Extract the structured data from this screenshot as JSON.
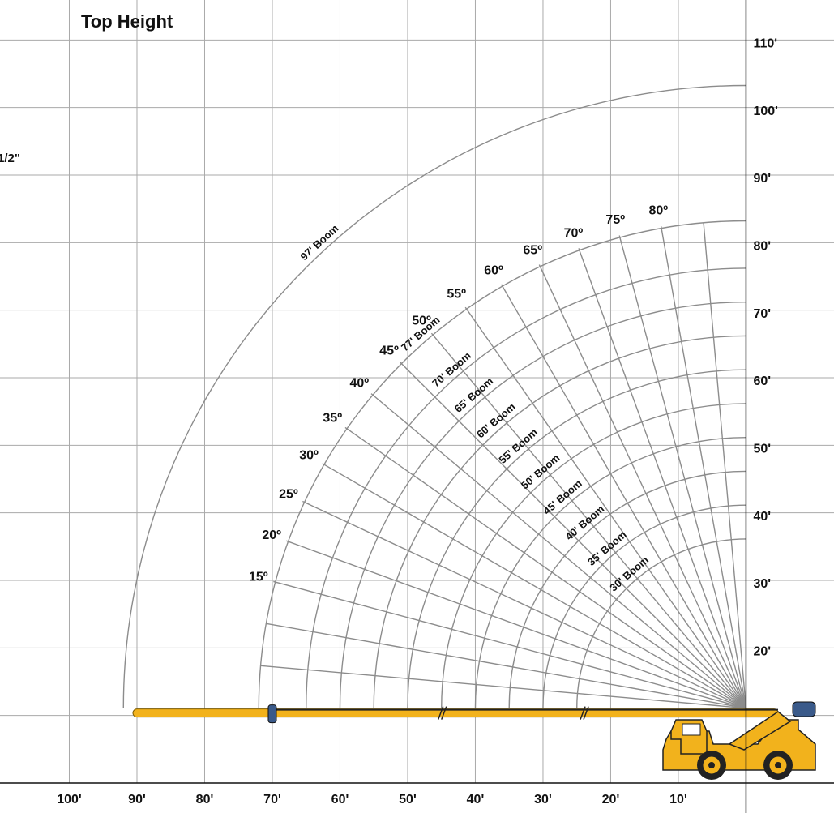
{
  "chart_data": {
    "type": "boom-range",
    "title": "Top Height",
    "side_note": "1/2\"",
    "xlim": [
      110,
      -13
    ],
    "ylim": [
      0,
      120
    ],
    "xticks": [
      {
        "value": 100,
        "label": "100'"
      },
      {
        "value": 90,
        "label": "90'"
      },
      {
        "value": 80,
        "label": "80'"
      },
      {
        "value": 70,
        "label": "70'"
      },
      {
        "value": 60,
        "label": "60'"
      },
      {
        "value": 50,
        "label": "50'"
      },
      {
        "value": 40,
        "label": "40'"
      },
      {
        "value": 30,
        "label": "30'"
      },
      {
        "value": 20,
        "label": "20'"
      },
      {
        "value": 10,
        "label": "10'"
      }
    ],
    "yticks": [
      {
        "value": 110,
        "label": "110'"
      },
      {
        "value": 100,
        "label": "100'"
      },
      {
        "value": 90,
        "label": "90'"
      },
      {
        "value": 80,
        "label": "80'"
      },
      {
        "value": 70,
        "label": "70'"
      },
      {
        "value": 60,
        "label": "60'"
      },
      {
        "value": 50,
        "label": "50'"
      },
      {
        "value": 40,
        "label": "40'"
      },
      {
        "value": 30,
        "label": "30'"
      },
      {
        "value": 20,
        "label": "20'"
      }
    ],
    "grid": true,
    "booms": [
      {
        "value": 97,
        "label": "97' Boom"
      },
      {
        "value": 77,
        "label": "77' Boom"
      },
      {
        "value": 70,
        "label": "70' Boom"
      },
      {
        "value": 65,
        "label": "65' Boom"
      },
      {
        "value": 60,
        "label": "60' Boom"
      },
      {
        "value": 55,
        "label": "55' Boom"
      },
      {
        "value": 50,
        "label": "50' Boom"
      },
      {
        "value": 45,
        "label": "45' Boom"
      },
      {
        "value": 40,
        "label": "40' Boom"
      },
      {
        "value": 35,
        "label": "35' Boom"
      },
      {
        "value": 30,
        "label": "30' Boom"
      }
    ],
    "angles": [
      {
        "value": 15,
        "label": "15º"
      },
      {
        "value": 20,
        "label": "20º"
      },
      {
        "value": 25,
        "label": "25º"
      },
      {
        "value": 30,
        "label": "30º"
      },
      {
        "value": 35,
        "label": "35º"
      },
      {
        "value": 40,
        "label": "40º"
      },
      {
        "value": 45,
        "label": "45º"
      },
      {
        "value": 50,
        "label": "50º"
      },
      {
        "value": 55,
        "label": "55º"
      },
      {
        "value": 60,
        "label": "60º"
      },
      {
        "value": 65,
        "label": "65º"
      },
      {
        "value": 70,
        "label": "70º"
      },
      {
        "value": 75,
        "label": "75º"
      },
      {
        "value": 80,
        "label": "80º"
      }
    ],
    "arc_color": "#8c8c8c",
    "boom_color": "#f2b21c"
  }
}
